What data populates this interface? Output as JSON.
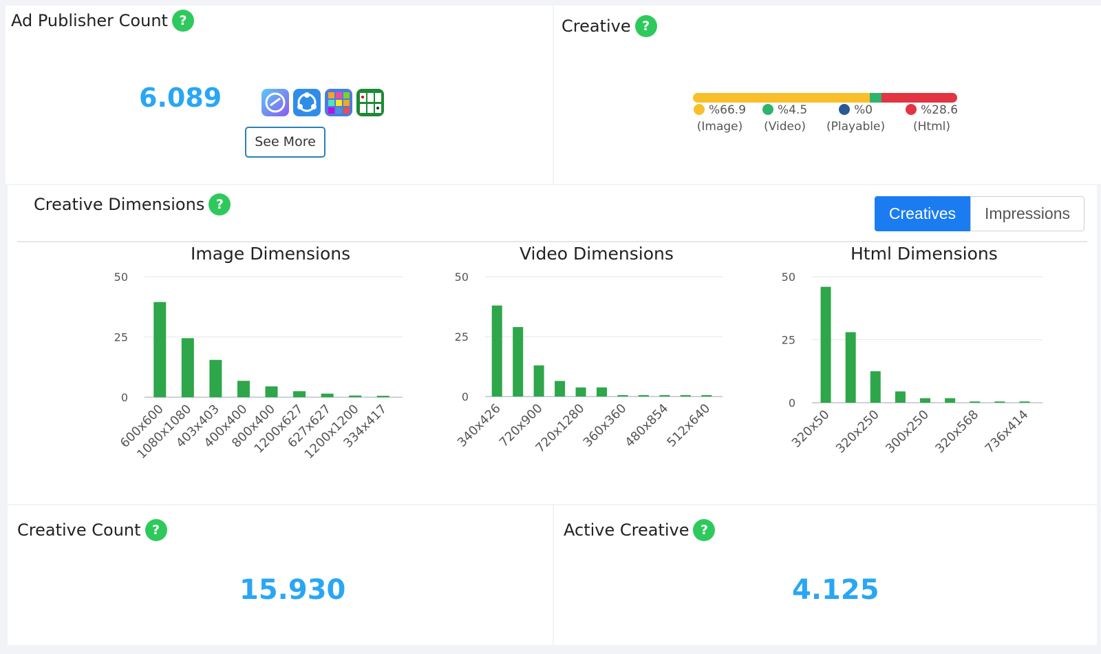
{
  "publisher": {
    "title": "Ad Publisher Count",
    "help": "?",
    "count": "6.089",
    "apps": [
      {
        "icon": "cleaner-app-icon",
        "color": "#7a6cf0"
      },
      {
        "icon": "share-app-icon",
        "color": "#2f8de8"
      },
      {
        "icon": "number-puzzle-app-icon",
        "color": "#4b7be0"
      },
      {
        "icon": "solitaire-app-icon",
        "color": "#1c8a33"
      }
    ],
    "see_more": "See More"
  },
  "creative": {
    "title": "Creative",
    "help": "?",
    "shares": [
      {
        "pct": "%66.9",
        "label": "(Image)",
        "value": 66.9,
        "color": "#f8bf2a"
      },
      {
        "pct": "%4.5",
        "label": "(Video)",
        "value": 4.5,
        "color": "#2db36d"
      },
      {
        "pct": "%0",
        "label": "(Playable)",
        "value": 0,
        "color": "#2a5a94"
      },
      {
        "pct": "%28.6",
        "label": "(Html)",
        "value": 28.6,
        "color": "#e23443"
      }
    ]
  },
  "dimensions": {
    "title": "Creative Dimensions",
    "help": "?",
    "toggle": {
      "creatives": "Creatives",
      "impressions": "Impressions"
    }
  },
  "chart_data": [
    {
      "type": "bar",
      "title": "Image Dimensions",
      "categories": [
        "600x600",
        "1080x1080",
        "403x403",
        "400x400",
        "800x400",
        "1200x627",
        "627x627",
        "1200x1200",
        "334x417"
      ],
      "values": [
        39.5,
        24.5,
        15.5,
        6.8,
        4.5,
        2.5,
        1.5,
        0.7,
        0.6
      ],
      "ylim": [
        0,
        50
      ],
      "yticks": [
        0,
        25,
        50
      ],
      "color": "#2ea64a"
    },
    {
      "type": "bar",
      "title": "Video Dimensions",
      "categories": [
        "340x426",
        "",
        "720x900",
        "",
        "720x1280",
        "",
        "360x360",
        "",
        "480x854",
        "",
        "512x640"
      ],
      "values": [
        38,
        29,
        13,
        6.5,
        3.8,
        3.8,
        0.6,
        0.6,
        0.6,
        0.6,
        0.6
      ],
      "ylim": [
        0,
        50
      ],
      "yticks": [
        0,
        25,
        50
      ],
      "color": "#2ea64a"
    },
    {
      "type": "bar",
      "title": "Html Dimensions",
      "categories": [
        "320x50",
        "",
        "320x250",
        "",
        "300x250",
        "",
        "320x568",
        "",
        "736x414"
      ],
      "values": [
        46,
        28,
        12.5,
        4.5,
        1.8,
        1.8,
        0.5,
        0.5,
        0.5
      ],
      "ylim": [
        0,
        50
      ],
      "yticks": [
        0,
        25,
        50
      ],
      "color": "#2ea64a"
    }
  ],
  "creative_count": {
    "title": "Creative Count",
    "help": "?",
    "value": "15.930"
  },
  "active_creative": {
    "title": "Active Creative",
    "help": "?",
    "value": "4.125"
  }
}
